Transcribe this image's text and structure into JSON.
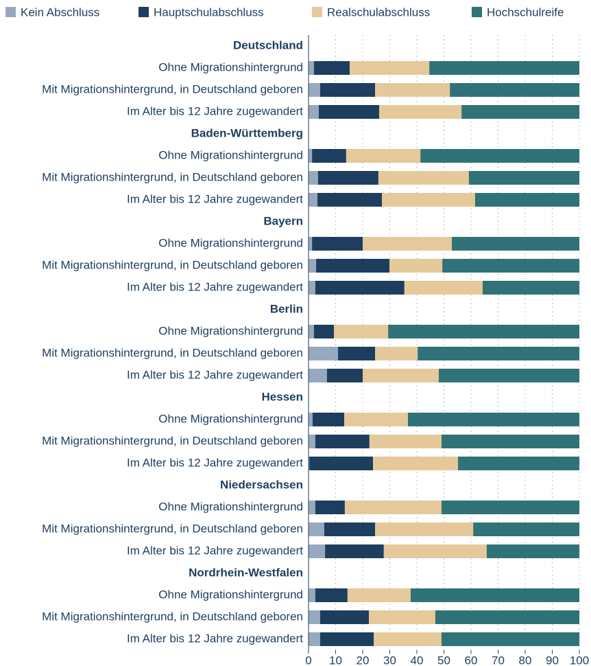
{
  "chart_data": {
    "type": "stacked-barh",
    "groups": [
      {
        "name": "Deutschland",
        "categories": [
          "Ohne Migrationshintergrund",
          "Mit Migrationshintergrund, in Deutschland geboren",
          "Im Alter bis 12 Jahre zugewandert"
        ]
      },
      {
        "name": "Baden-Württemberg",
        "categories": [
          "Ohne Migrationshintergrund",
          "Mit Migrationshintergrund, in Deutschland geboren",
          "Im Alter bis 12 Jahre zugewandert"
        ]
      },
      {
        "name": "Bayern",
        "categories": [
          "Ohne Migrationshintergrund",
          "Mit Migrationshintergrund, in Deutschland geboren",
          "Im Alter bis 12 Jahre zugewandert"
        ]
      },
      {
        "name": "Berlin",
        "categories": [
          "Ohne Migrationshintergrund",
          "Mit Migrationshintergrund, in Deutschland geboren",
          "Im Alter bis 12 Jahre zugewandert"
        ]
      },
      {
        "name": "Hessen",
        "categories": [
          "Ohne Migrationshintergrund",
          "Mit Migrationshintergrund, in Deutschland geboren",
          "Im Alter bis 12 Jahre zugewandert"
        ]
      },
      {
        "name": "Niedersachsen",
        "categories": [
          "Ohne Migrationshintergrund",
          "Mit Migrationshintergrund, in Deutschland geboren",
          "Im Alter bis 12 Jahre zugewandert"
        ]
      },
      {
        "name": "Nordrhein-Westfalen",
        "categories": [
          "Ohne Migrationshintergrund",
          "Mit Migrationshintergrund, in Deutschland geboren",
          "Im Alter bis 12 Jahre zugewandert"
        ]
      }
    ],
    "series": [
      {
        "name": "Kein Abschluss",
        "color": "#97a9bf",
        "values": [
          2.0,
          4.3,
          3.8,
          1.3,
          3.5,
          3.3,
          1.3,
          2.8,
          2.5,
          2.0,
          10.9,
          6.8,
          1.5,
          2.5,
          0.3,
          2.5,
          5.8,
          6.1,
          2.5,
          4.3,
          4.3
        ]
      },
      {
        "name": "Hauptschulabschluss",
        "color": "#1d3e5e",
        "values": [
          13.2,
          20.3,
          22.3,
          12.6,
          22.3,
          23.8,
          18.7,
          27.1,
          32.9,
          7.4,
          13.7,
          13.2,
          11.7,
          20.0,
          23.5,
          10.9,
          18.8,
          21.7,
          11.9,
          18.0,
          19.8
        ]
      },
      {
        "name": "Realschulabschluss",
        "color": "#e6c99a",
        "values": [
          29.4,
          27.6,
          30.4,
          27.4,
          33.4,
          34.4,
          32.9,
          19.5,
          28.9,
          20.0,
          15.7,
          28.1,
          23.5,
          26.6,
          31.4,
          35.7,
          36.2,
          38.0,
          23.3,
          24.5,
          25.0
        ]
      },
      {
        "name": "Hochschulreife",
        "color": "#2f7378",
        "values": [
          55.4,
          47.8,
          43.5,
          58.7,
          40.8,
          38.5,
          47.1,
          50.6,
          35.7,
          70.6,
          59.7,
          51.9,
          63.3,
          50.9,
          44.8,
          50.9,
          39.2,
          34.2,
          62.3,
          53.2,
          50.9
        ]
      }
    ],
    "xlim": [
      0,
      100
    ],
    "xticks": [
      0,
      10,
      20,
      30,
      40,
      50,
      60,
      70,
      80,
      90,
      100
    ],
    "grid": true,
    "legend": "top"
  }
}
